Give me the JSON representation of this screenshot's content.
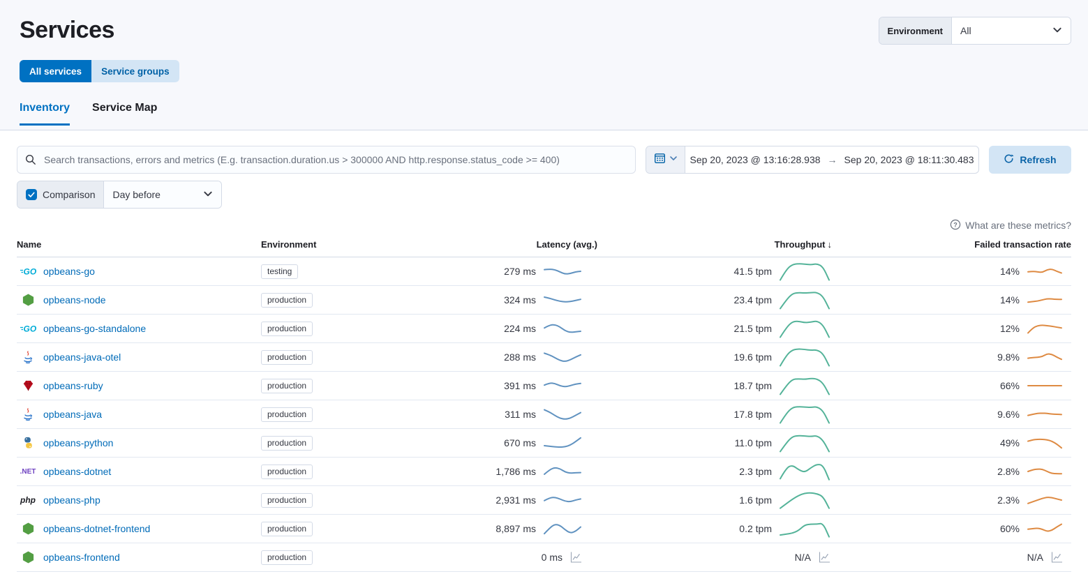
{
  "page": {
    "title": "Services"
  },
  "environment_filter": {
    "label": "Environment",
    "value": "All"
  },
  "toggle_buttons": {
    "all_services": "All services",
    "service_groups": "Service groups"
  },
  "tabs": {
    "inventory": "Inventory",
    "service_map": "Service Map"
  },
  "search": {
    "placeholder": "Search transactions, errors and metrics (E.g. transaction.duration.us > 300000 AND http.response.status_code >= 400)"
  },
  "date_picker": {
    "start": "Sep 20, 2023 @ 13:16:28.938",
    "end": "Sep 20, 2023 @ 18:11:30.483",
    "refresh_label": "Refresh"
  },
  "comparison": {
    "label": "Comparison",
    "checked": true,
    "value": "Day before"
  },
  "help_link": "What are these metrics?",
  "icons": {
    "arrow_right": "→",
    "sort_down": "↓",
    "go_text": "GO",
    "dotnet_text": ".NET",
    "php_text": "php"
  },
  "colors": {
    "latency": "#6092C0",
    "throughput": "#54B399",
    "failed": "#DE8A42"
  },
  "table": {
    "columns": [
      "Name",
      "Environment",
      "Latency (avg.)",
      "Throughput",
      "Failed transaction rate"
    ],
    "sorted_column": "Throughput",
    "rows": [
      {
        "name": "opbeans-go",
        "icon": "go-icon",
        "environment": "testing",
        "latency": "279 ms",
        "throughput": "41.5 tpm",
        "failed_rate": "14%",
        "latency_spark": [
          0.35,
          0.3,
          0.35,
          0.55,
          0.75,
          0.7,
          0.55,
          0.5
        ],
        "throughput_spark": [
          0.98,
          0.4,
          0.12,
          0.08,
          0.1,
          0.14,
          0.08,
          0.25,
          0.98
        ],
        "failed_spark": [
          0.55,
          0.5,
          0.55,
          0.6,
          0.35,
          0.3,
          0.5,
          0.65
        ]
      },
      {
        "name": "opbeans-node",
        "icon": "node-icon",
        "environment": "production",
        "latency": "324 ms",
        "throughput": "23.4 tpm",
        "failed_rate": "14%",
        "latency_spark": [
          0.25,
          0.35,
          0.5,
          0.62,
          0.68,
          0.65,
          0.55,
          0.45
        ],
        "throughput_spark": [
          0.98,
          0.5,
          0.15,
          0.1,
          0.12,
          0.1,
          0.08,
          0.3,
          0.98
        ],
        "failed_spark": [
          0.7,
          0.65,
          0.6,
          0.5,
          0.4,
          0.42,
          0.45,
          0.45
        ]
      },
      {
        "name": "opbeans-go-standalone",
        "icon": "go-icon",
        "environment": "production",
        "latency": "224 ms",
        "throughput": "21.5 tpm",
        "failed_rate": "12%",
        "latency_spark": [
          0.45,
          0.2,
          0.15,
          0.35,
          0.7,
          0.85,
          0.8,
          0.75
        ],
        "throughput_spark": [
          0.98,
          0.45,
          0.12,
          0.1,
          0.18,
          0.15,
          0.08,
          0.3,
          0.98
        ],
        "failed_spark": [
          0.9,
          0.45,
          0.25,
          0.2,
          0.25,
          0.3,
          0.38,
          0.45
        ]
      },
      {
        "name": "opbeans-java-otel",
        "icon": "java-icon",
        "environment": "production",
        "latency": "288 ms",
        "throughput": "19.6 tpm",
        "failed_rate": "9.8%",
        "latency_spark": [
          0.15,
          0.3,
          0.55,
          0.8,
          0.9,
          0.75,
          0.5,
          0.3
        ],
        "throughput_spark": [
          0.98,
          0.4,
          0.1,
          0.05,
          0.08,
          0.12,
          0.1,
          0.3,
          0.98
        ],
        "failed_spark": [
          0.6,
          0.55,
          0.52,
          0.45,
          0.2,
          0.25,
          0.5,
          0.7
        ]
      },
      {
        "name": "opbeans-ruby",
        "icon": "ruby-icon",
        "environment": "production",
        "latency": "391 ms",
        "throughput": "18.7 tpm",
        "failed_rate": "66%",
        "latency_spark": [
          0.45,
          0.25,
          0.3,
          0.5,
          0.6,
          0.5,
          0.35,
          0.3
        ],
        "throughput_spark": [
          0.98,
          0.5,
          0.15,
          0.12,
          0.15,
          0.1,
          0.12,
          0.35,
          0.98
        ],
        "failed_spark": [
          0.5,
          0.5,
          0.5,
          0.5,
          0.5,
          0.5,
          0.5,
          0.5
        ]
      },
      {
        "name": "opbeans-java",
        "icon": "java-icon",
        "environment": "production",
        "latency": "311 ms",
        "throughput": "17.8 tpm",
        "failed_rate": "9.6%",
        "latency_spark": [
          0.1,
          0.3,
          0.6,
          0.85,
          0.95,
          0.85,
          0.6,
          0.35
        ],
        "throughput_spark": [
          0.98,
          0.45,
          0.12,
          0.08,
          0.1,
          0.12,
          0.08,
          0.3,
          0.98
        ],
        "failed_spark": [
          0.6,
          0.5,
          0.42,
          0.4,
          0.42,
          0.48,
          0.5,
          0.52
        ]
      },
      {
        "name": "opbeans-python",
        "icon": "python-icon",
        "environment": "production",
        "latency": "670 ms",
        "throughput": "11.0 tpm",
        "failed_rate": "49%",
        "latency_spark": [
          0.75,
          0.8,
          0.85,
          0.88,
          0.85,
          0.7,
          0.4,
          0.05
        ],
        "throughput_spark": [
          0.98,
          0.5,
          0.15,
          0.1,
          0.12,
          0.15,
          0.1,
          0.35,
          0.98
        ],
        "failed_spark": [
          0.35,
          0.22,
          0.18,
          0.18,
          0.22,
          0.35,
          0.6,
          0.95
        ]
      },
      {
        "name": "opbeans-dotnet",
        "icon": "dotnet-icon",
        "environment": "production",
        "latency": "1,786 ms",
        "throughput": "2.3 tpm",
        "failed_rate": "2.8%",
        "latency_spark": [
          0.75,
          0.35,
          0.15,
          0.25,
          0.55,
          0.65,
          0.62,
          0.6
        ],
        "throughput_spark": [
          0.9,
          0.3,
          0.15,
          0.4,
          0.55,
          0.3,
          0.1,
          0.15,
          0.95
        ],
        "failed_spark": [
          0.5,
          0.35,
          0.28,
          0.3,
          0.5,
          0.68,
          0.7,
          0.7
        ]
      },
      {
        "name": "opbeans-php",
        "icon": "php-icon",
        "environment": "production",
        "latency": "2,931 ms",
        "throughput": "1.6 tpm",
        "failed_rate": "2.3%",
        "latency_spark": [
          0.55,
          0.3,
          0.25,
          0.4,
          0.6,
          0.65,
          0.5,
          0.4
        ],
        "throughput_spark": [
          0.95,
          0.7,
          0.45,
          0.25,
          0.12,
          0.1,
          0.15,
          0.3,
          0.95
        ],
        "failed_spark": [
          0.8,
          0.65,
          0.5,
          0.35,
          0.25,
          0.28,
          0.4,
          0.5
        ]
      },
      {
        "name": "opbeans-dotnet-frontend",
        "icon": "node-icon",
        "environment": "production",
        "latency": "8,897 ms",
        "throughput": "0.2 tpm",
        "failed_rate": "60%",
        "latency_spark": [
          0.95,
          0.45,
          0.1,
          0.2,
          0.6,
          0.9,
          0.75,
          0.35
        ],
        "throughput_spark": [
          0.85,
          0.8,
          0.75,
          0.6,
          0.3,
          0.25,
          0.25,
          0.2,
          0.95
        ],
        "failed_spark": [
          0.55,
          0.5,
          0.45,
          0.55,
          0.75,
          0.65,
          0.35,
          0.1
        ]
      },
      {
        "name": "opbeans-frontend",
        "icon": "node-icon",
        "environment": "production",
        "latency": "0 ms",
        "throughput": "N/A",
        "failed_rate": "N/A",
        "latency_spark": null,
        "throughput_spark": null,
        "failed_spark": null
      }
    ]
  }
}
